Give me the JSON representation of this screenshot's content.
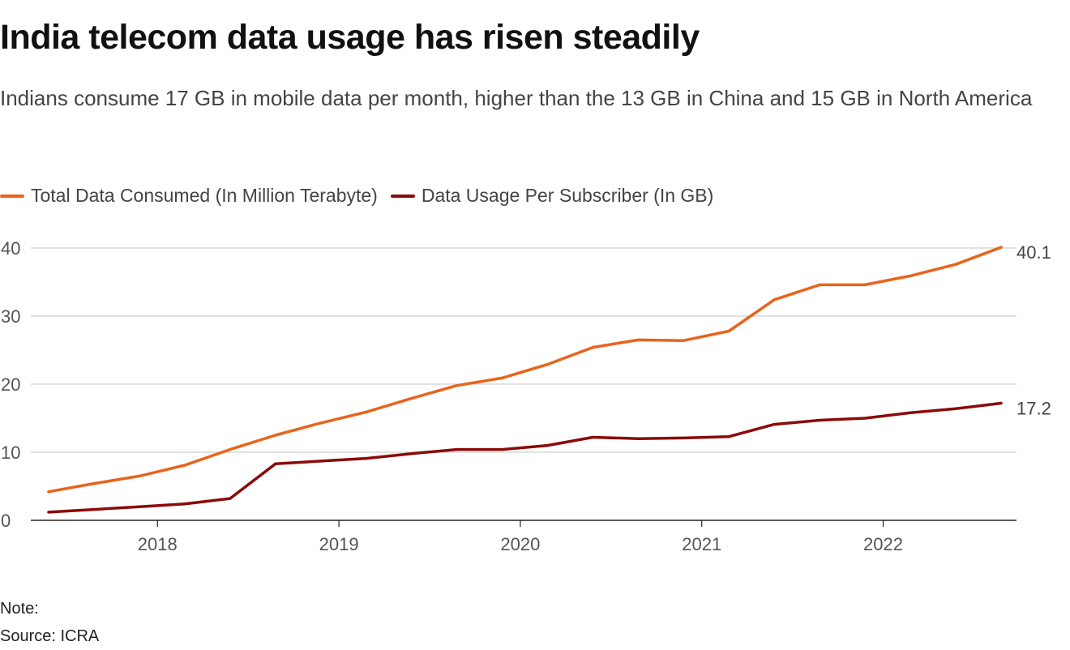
{
  "title": "India telecom data usage has risen steadily",
  "subtitle": "Indians consume 17 GB in mobile data per month, higher than the 13 GB in China and 15 GB in North America",
  "legend": [
    {
      "label": "Total Data Consumed (In Million Terabyte)",
      "color": "#e8641c"
    },
    {
      "label": "Data Usage Per Subscriber (In GB)",
      "color": "#8b0a0a"
    }
  ],
  "footer": {
    "note": "Note:",
    "source": "Source: ICRA"
  },
  "chart_data": {
    "type": "line",
    "x": [
      2017.4,
      2017.65,
      2017.9,
      2018.15,
      2018.4,
      2018.65,
      2018.9,
      2019.15,
      2019.4,
      2019.65,
      2019.9,
      2020.15,
      2020.4,
      2020.65,
      2020.9,
      2021.15,
      2021.4,
      2021.65,
      2021.9,
      2022.15,
      2022.4,
      2022.65
    ],
    "series": [
      {
        "name": "Total Data Consumed (In Million Terabyte)",
        "color": "#e8641c",
        "values": [
          4.2,
          5.4,
          6.5,
          8.1,
          10.4,
          12.5,
          14.3,
          15.9,
          17.9,
          19.8,
          20.9,
          22.9,
          25.4,
          26.5,
          26.4,
          27.8,
          32.4,
          34.6,
          34.6,
          35.9,
          37.6,
          40.1
        ],
        "end_label": "40.1"
      },
      {
        "name": "Data Usage Per Subscriber (In GB)",
        "color": "#8b0a0a",
        "values": [
          1.2,
          1.6,
          2.0,
          2.4,
          3.2,
          8.3,
          8.7,
          9.1,
          9.8,
          10.4,
          10.4,
          11.0,
          12.2,
          12.0,
          12.1,
          12.3,
          14.1,
          14.7,
          15.0,
          15.8,
          16.4,
          17.2
        ],
        "end_label": "17.2"
      }
    ],
    "xticks": [
      2018,
      2019,
      2020,
      2021,
      2022
    ],
    "xtick_labels": [
      "2018",
      "2019",
      "2020",
      "2021",
      "2022"
    ],
    "yticks": [
      0,
      10,
      20,
      30,
      40
    ],
    "ytick_labels": [
      "0",
      "10",
      "20",
      "30",
      "40"
    ],
    "xlim": [
      2017.4,
      2022.65
    ],
    "ylim": [
      0,
      40
    ],
    "grid": true,
    "legend_position": "top-left"
  }
}
